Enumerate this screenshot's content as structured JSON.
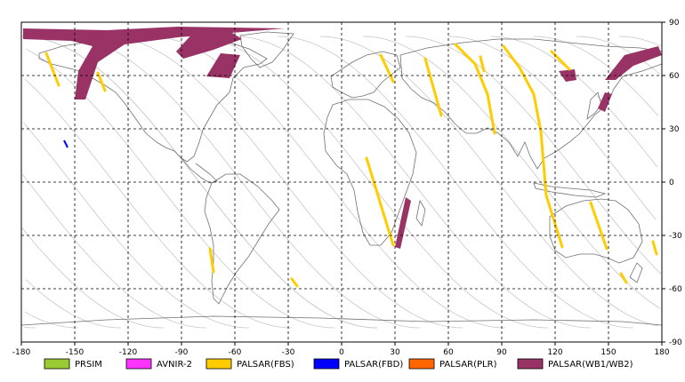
{
  "map": {
    "lon_range": [
      -180,
      180
    ],
    "lat_range": [
      -90,
      90
    ],
    "lon_ticks": [
      "-180",
      "-150",
      "-120",
      "-90",
      "-60",
      "-30",
      "0",
      "30",
      "60",
      "90",
      "120",
      "150",
      "180"
    ],
    "lat_ticks": [
      "90",
      "60",
      "30",
      "0",
      "-30",
      "-60",
      "-90"
    ],
    "grid": "dashed",
    "orbit_color": "#c8c8c8",
    "coast_color": "#707070"
  },
  "legend": [
    {
      "label": "PRSIM",
      "color": "#99cc33"
    },
    {
      "label": "AVNIR-2",
      "color": "#ff33ff"
    },
    {
      "label": "PALSAR(FBS)",
      "color": "#ffcc00"
    },
    {
      "label": "PALSAR(FBD)",
      "color": "#0000ff"
    },
    {
      "label": "PALSAR(PLR)",
      "color": "#ff6600"
    },
    {
      "label": "PALSAR(WB1/WB2)",
      "color": "#993366"
    }
  ]
}
